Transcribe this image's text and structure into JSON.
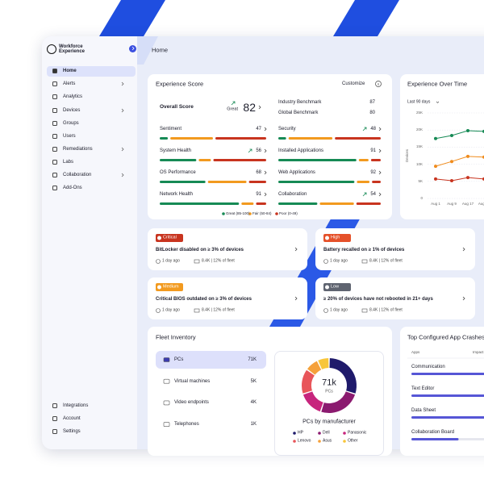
{
  "sidebar": {
    "brand": "Workforce Experience",
    "nav": [
      "Home",
      "Alerts",
      "Analytics",
      "Devices",
      "Groups",
      "Users",
      "Remediations",
      "Labs",
      "Collaboration",
      "Add-Ons"
    ],
    "footer": [
      "Integrations",
      "Account",
      "Settings"
    ]
  },
  "header": {
    "title": "Home"
  },
  "experience_score": {
    "title": "Experience Score",
    "customize": "Customize",
    "overall": {
      "label": "Overall Score",
      "rating": "Great",
      "value": 82,
      "trend_up": true
    },
    "benchmarks": [
      {
        "label": "Industry Benchmark",
        "value": 87
      },
      {
        "label": "Global Benchmark",
        "value": 80
      }
    ],
    "metrics": [
      {
        "label": "Sentiment",
        "value": 47,
        "segments": [
          8,
          42,
          50
        ]
      },
      {
        "label": "System Health",
        "value": 56,
        "segments": [
          36,
          12,
          52
        ],
        "trend_up": true
      },
      {
        "label": "OS Performance",
        "value": 68,
        "segments": [
          45,
          38,
          17
        ]
      },
      {
        "label": "Network Health",
        "value": 91,
        "segments": [
          78,
          12,
          10
        ]
      },
      {
        "label": "Security",
        "value": 48,
        "segments": [
          8,
          45,
          47
        ],
        "trend_up": true
      },
      {
        "label": "Installed Applications",
        "value": 91,
        "segments": [
          80,
          10,
          10
        ]
      },
      {
        "label": "Web Applications",
        "value": 92,
        "segments": [
          78,
          13,
          9
        ]
      },
      {
        "label": "Collaboration",
        "value": 54,
        "segments": [
          40,
          35,
          25
        ],
        "trend_up": true
      }
    ],
    "legend": [
      {
        "label": "Great (85-100)",
        "color": "#168a55"
      },
      {
        "label": "Fair (50-84)",
        "color": "#f29a1f"
      },
      {
        "label": "Poor (0-49)",
        "color": "#c8341f"
      }
    ]
  },
  "experience_over_time": {
    "title": "Experience Over Time",
    "range": "Last 90 days",
    "y_label": "Devices",
    "categories": [
      "Aug 1",
      "Aug 9",
      "Aug 17",
      "Aug 25"
    ],
    "ylim": [
      0,
      25000
    ],
    "yticks": [
      {
        "value": 0,
        "label": "0"
      },
      {
        "value": 5000,
        "label": "5K"
      },
      {
        "value": 10000,
        "label": "10K"
      },
      {
        "value": 15000,
        "label": "15K"
      },
      {
        "value": 20000,
        "label": "20K"
      },
      {
        "value": 25000,
        "label": "25K"
      }
    ],
    "series": [
      {
        "color": "#168a55",
        "values": [
          17500,
          18400,
          19800,
          19600
        ]
      },
      {
        "color": "#f08c1d",
        "values": [
          9400,
          10800,
          12300,
          12100
        ]
      },
      {
        "color": "#c8341f",
        "values": [
          5700,
          5200,
          6100,
          5700
        ]
      }
    ]
  },
  "alerts": [
    {
      "severity": "Critical",
      "color": "#c8341f",
      "title": "BitLocker disabled on ≥ 3% of devices",
      "age": "1 day ago",
      "devices": "8.4K | 12% of fleet"
    },
    {
      "severity": "High",
      "color": "#e5512a",
      "title": "Battery recalled on ≥ 1% of devices",
      "age": "1 day ago",
      "devices": "8.4K | 12% of fleet"
    },
    {
      "severity": "Medium",
      "color": "#f29a1f",
      "title": "Critical BIOS outdated on ≥ 3% of devices",
      "age": "1 day ago",
      "devices": "8.4K | 12% of fleet"
    },
    {
      "severity": "Low",
      "color": "#5f6470",
      "title": "≥ 20% of devices have not rebooted in 21+ days",
      "age": "1 day ago",
      "devices": "8.4K | 12% of fleet"
    }
  ],
  "fleet_inventory": {
    "title": "Fleet Inventory",
    "rows": [
      {
        "label": "PCs",
        "value": "71K"
      },
      {
        "label": "Virtual machines",
        "value": "5K"
      },
      {
        "label": "Video endpoints",
        "value": "4K"
      },
      {
        "label": "Telephones",
        "value": "1K"
      }
    ],
    "donut": {
      "center_value": "71k",
      "center_label": "PCs",
      "title": "PCs by manufacturer",
      "slices": [
        {
          "name": "HP",
          "color": "#1f1a6b",
          "value": 30
        },
        {
          "name": "Dell",
          "color": "#8b1a6f",
          "value": 25
        },
        {
          "name": "Panasonic",
          "color": "#c7257d",
          "value": 15
        },
        {
          "name": "Lenovo",
          "color": "#e8555a",
          "value": 15
        },
        {
          "name": "Asus",
          "color": "#f5a13a",
          "value": 8
        },
        {
          "name": "Other",
          "color": "#f8c63a",
          "value": 7
        }
      ]
    }
  },
  "app_crashes": {
    "title": "Top Configured App Crashes",
    "columns": [
      "Apps",
      "Impact"
    ],
    "xlim": [
      0,
      100
    ],
    "color": "#5656d6",
    "rows": [
      {
        "label": "Communication",
        "value": 90
      },
      {
        "label": "Text Editor",
        "value": 85
      },
      {
        "label": "Data Sheet",
        "value": 80
      },
      {
        "label": "Collaboration Board",
        "value": 45
      }
    ]
  }
}
